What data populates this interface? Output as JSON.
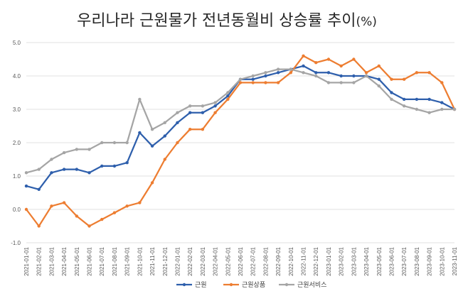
{
  "chart_data": {
    "type": "line",
    "title": "우리나라 근원물가 전년동월비 상승률 추이",
    "title_unit": "(%)",
    "xlabel": "",
    "ylabel": "",
    "ylim": [
      -1.0,
      5.0
    ],
    "yticks": [
      "-1.0",
      "0.0",
      "1.0",
      "2.0",
      "3.0",
      "4.0",
      "5.0"
    ],
    "grid": "horizontal",
    "legend_position": "bottom",
    "x": [
      "2021-01-01",
      "2021-02-01",
      "2021-03-01",
      "2021-04-01",
      "2021-05-01",
      "2021-06-01",
      "2021-07-01",
      "2021-08-01",
      "2021-09-01",
      "2021-10-01",
      "2021-11-01",
      "2021-12-01",
      "2022-01-01",
      "2022-02-01",
      "2022-03-01",
      "2022-04-01",
      "2022-05-01",
      "2022-06-01",
      "2022-07-01",
      "2022-08-01",
      "2022-09-01",
      "2022-10-01",
      "2022-11-01",
      "2022-12-01",
      "2023-01-01",
      "2023-02-01",
      "2023-03-01",
      "2023-04-01",
      "2023-05-01",
      "2023-06-01",
      "2023-07-01",
      "2023-08-01",
      "2023-09-01",
      "2023-10-01",
      "2023-11-01"
    ],
    "series": [
      {
        "name": "근원",
        "color": "#2E5FAC",
        "values": [
          0.7,
          0.6,
          1.1,
          1.2,
          1.2,
          1.1,
          1.3,
          1.3,
          1.4,
          2.3,
          1.9,
          2.2,
          2.6,
          2.9,
          2.9,
          3.1,
          3.4,
          3.9,
          3.9,
          4.0,
          4.1,
          4.2,
          4.3,
          4.1,
          4.1,
          4.0,
          4.0,
          4.0,
          3.9,
          3.5,
          3.3,
          3.3,
          3.3,
          3.2,
          3.0
        ]
      },
      {
        "name": "근원상품",
        "color": "#ED7D31",
        "values": [
          0.0,
          -0.5,
          0.1,
          0.2,
          -0.2,
          -0.5,
          -0.3,
          -0.1,
          0.1,
          0.2,
          0.8,
          1.5,
          2.0,
          2.4,
          2.4,
          2.9,
          3.3,
          3.8,
          3.8,
          3.8,
          3.8,
          4.1,
          4.6,
          4.4,
          4.5,
          4.3,
          4.5,
          4.1,
          4.3,
          3.9,
          3.9,
          4.1,
          4.1,
          3.8,
          3.0
        ]
      },
      {
        "name": "근원서비스",
        "color": "#A5A5A5",
        "values": [
          1.1,
          1.2,
          1.5,
          1.7,
          1.8,
          1.8,
          2.0,
          2.0,
          2.0,
          3.3,
          2.4,
          2.6,
          2.9,
          3.1,
          3.1,
          3.2,
          3.5,
          3.9,
          4.0,
          4.1,
          4.2,
          4.2,
          4.1,
          4.0,
          3.8,
          3.8,
          3.8,
          4.0,
          3.7,
          3.3,
          3.1,
          3.0,
          2.9,
          3.0,
          3.0
        ]
      }
    ]
  }
}
